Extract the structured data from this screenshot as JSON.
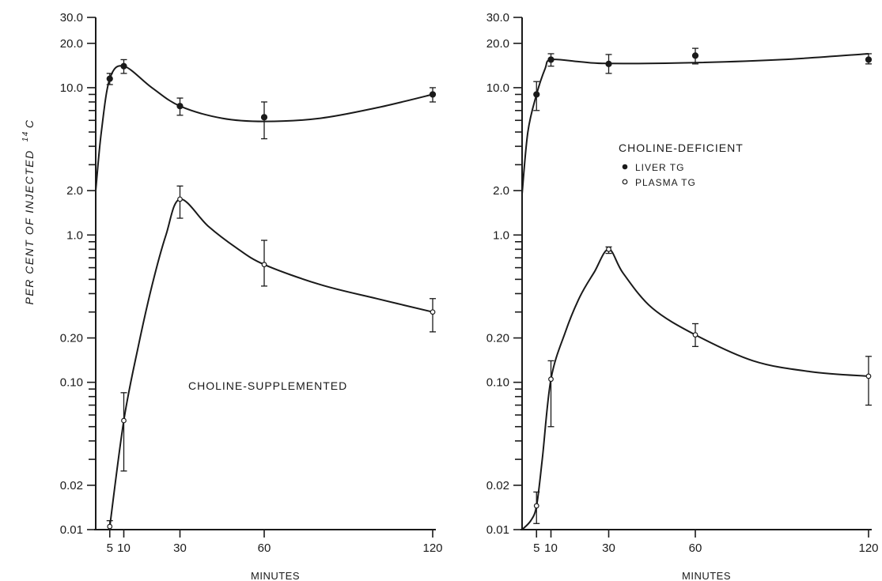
{
  "figure": {
    "ylabel_text": "PER CENT OF INJECTED",
    "ylabel_sup": "14",
    "ylabel_element": "C"
  },
  "chart_data": [
    {
      "type": "line",
      "xlabel": "MINUTES",
      "ylabel": "PER CENT OF INJECTED 14C",
      "yscale": "log",
      "ylim": [
        0.01,
        30.0
      ],
      "xlim": [
        0,
        120
      ],
      "x_ticks": [
        5,
        10,
        30,
        60,
        120
      ],
      "x_tick_labels": [
        "5",
        "10",
        "30",
        "60",
        "120"
      ],
      "y_tick_labels": [
        {
          "value": 0.01,
          "label": "0.01"
        },
        {
          "value": 0.02,
          "label": "0.02"
        },
        {
          "value": 0.1,
          "label": "0.10"
        },
        {
          "value": 0.2,
          "label": "0.20"
        },
        {
          "value": 1.0,
          "label": "1.0"
        },
        {
          "value": 2.0,
          "label": "2.0"
        },
        {
          "value": 10.0,
          "label": "10.0"
        },
        {
          "value": 20.0,
          "label": "20.0"
        },
        {
          "value": 30.0,
          "label": "30.0"
        }
      ],
      "annotation": "CHOLINE-SUPPLEMENTED",
      "series": [
        {
          "name": "LIVER TG",
          "marker": "filled",
          "points": [
            {
              "x": 5,
              "y": 11.5,
              "lo": 10.5,
              "hi": 12.5
            },
            {
              "x": 10,
              "y": 14.0,
              "lo": 12.5,
              "hi": 15.5
            },
            {
              "x": 30,
              "y": 7.5,
              "lo": 6.5,
              "hi": 8.5
            },
            {
              "x": 60,
              "y": 6.3,
              "lo": 4.5,
              "hi": 8.0
            },
            {
              "x": 120,
              "y": 9.0,
              "lo": 8.0,
              "hi": 10.0
            }
          ],
          "curve": [
            [
              0,
              2.0
            ],
            [
              2,
              5.0
            ],
            [
              5,
              11.5
            ],
            [
              10,
              14.0
            ],
            [
              20,
              10.0
            ],
            [
              30,
              7.5
            ],
            [
              45,
              6.2
            ],
            [
              60,
              5.9
            ],
            [
              80,
              6.2
            ],
            [
              100,
              7.3
            ],
            [
              120,
              9.0
            ]
          ]
        },
        {
          "name": "PLASMA TG",
          "marker": "open",
          "points": [
            {
              "x": 5,
              "y": 0.0105,
              "lo": 0.01,
              "hi": 0.0115
            },
            {
              "x": 10,
              "y": 0.055,
              "lo": 0.025,
              "hi": 0.085
            },
            {
              "x": 30,
              "y": 1.75,
              "lo": 1.3,
              "hi": 2.15
            },
            {
              "x": 60,
              "y": 0.63,
              "lo": 0.45,
              "hi": 0.92
            },
            {
              "x": 120,
              "y": 0.3,
              "lo": 0.22,
              "hi": 0.37
            }
          ],
          "curve": [
            [
              5,
              0.0105
            ],
            [
              10,
              0.055
            ],
            [
              15,
              0.17
            ],
            [
              20,
              0.45
            ],
            [
              25,
              1.0
            ],
            [
              30,
              1.75
            ],
            [
              40,
              1.15
            ],
            [
              50,
              0.82
            ],
            [
              60,
              0.63
            ],
            [
              80,
              0.46
            ],
            [
              100,
              0.37
            ],
            [
              120,
              0.3
            ]
          ]
        }
      ]
    },
    {
      "type": "line",
      "xlabel": "MINUTES",
      "ylabel": "",
      "yscale": "log",
      "ylim": [
        0.01,
        30.0
      ],
      "xlim": [
        0,
        120
      ],
      "x_ticks": [
        5,
        10,
        30,
        60,
        120
      ],
      "x_tick_labels": [
        "5",
        "10",
        "30",
        "60",
        "120"
      ],
      "y_tick_labels": [
        {
          "value": 0.01,
          "label": "0.01"
        },
        {
          "value": 0.02,
          "label": "0.02"
        },
        {
          "value": 0.1,
          "label": "0.10"
        },
        {
          "value": 0.2,
          "label": "0.20"
        },
        {
          "value": 1.0,
          "label": "1.0"
        },
        {
          "value": 2.0,
          "label": "2.0"
        },
        {
          "value": 10.0,
          "label": "10.0"
        },
        {
          "value": 20.0,
          "label": "20.0"
        },
        {
          "value": 30.0,
          "label": "30.0"
        }
      ],
      "annotation": "CHOLINE-DEFICIENT",
      "legend": {
        "placement": "upper-right",
        "entries": [
          {
            "label": "LIVER TG",
            "marker": "filled"
          },
          {
            "label": "PLASMA TG",
            "marker": "open"
          }
        ]
      },
      "series": [
        {
          "name": "LIVER TG",
          "marker": "filled",
          "points": [
            {
              "x": 5,
              "y": 9.0,
              "lo": 7.0,
              "hi": 11.0
            },
            {
              "x": 10,
              "y": 15.5,
              "lo": 14.0,
              "hi": 17.0
            },
            {
              "x": 30,
              "y": 14.5,
              "lo": 12.5,
              "hi": 16.8
            },
            {
              "x": 60,
              "y": 16.5,
              "lo": 14.5,
              "hi": 18.5
            },
            {
              "x": 120,
              "y": 15.5,
              "lo": 14.5,
              "hi": 17.0
            }
          ],
          "curve": [
            [
              0,
              1.9
            ],
            [
              2,
              5.0
            ],
            [
              5,
              9.0
            ],
            [
              8,
              13.5
            ],
            [
              10,
              15.5
            ],
            [
              20,
              15.0
            ],
            [
              30,
              14.6
            ],
            [
              60,
              14.8
            ],
            [
              90,
              15.5
            ],
            [
              120,
              17.0
            ]
          ]
        },
        {
          "name": "PLASMA TG",
          "marker": "open",
          "points": [
            {
              "x": 5,
              "y": 0.0145,
              "lo": 0.011,
              "hi": 0.018
            },
            {
              "x": 10,
              "y": 0.105,
              "lo": 0.05,
              "hi": 0.14
            },
            {
              "x": 30,
              "y": 0.8,
              "lo": 0.75,
              "hi": 0.83
            },
            {
              "x": 60,
              "y": 0.21,
              "lo": 0.175,
              "hi": 0.25
            },
            {
              "x": 120,
              "y": 0.11,
              "lo": 0.07,
              "hi": 0.15
            }
          ],
          "curve": [
            [
              0,
              0.01
            ],
            [
              3,
              0.0115
            ],
            [
              5,
              0.0145
            ],
            [
              7,
              0.03
            ],
            [
              10,
              0.105
            ],
            [
              15,
              0.22
            ],
            [
              20,
              0.38
            ],
            [
              25,
              0.56
            ],
            [
              30,
              0.8
            ],
            [
              35,
              0.55
            ],
            [
              45,
              0.32
            ],
            [
              60,
              0.21
            ],
            [
              80,
              0.14
            ],
            [
              100,
              0.118
            ],
            [
              120,
              0.11
            ]
          ]
        }
      ]
    }
  ]
}
